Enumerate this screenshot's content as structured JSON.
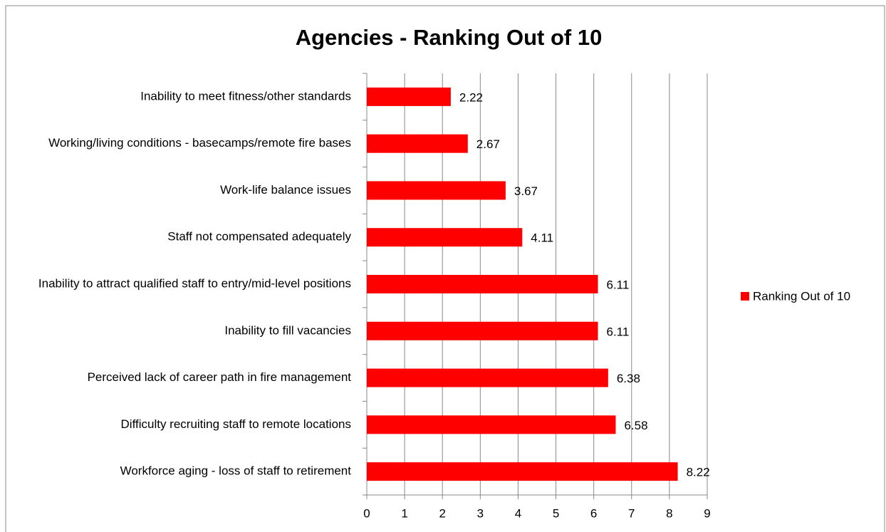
{
  "chart_data": {
    "type": "bar",
    "orientation": "horizontal",
    "title": "Agencies - Ranking Out of 10",
    "categories": [
      "Inability to meet fitness/other standards",
      "Working/living conditions - basecamps/remote fire bases",
      "Work-life balance issues",
      "Staff not compensated adequately",
      "Inability to attract qualified staff to entry/mid-level positions",
      "Inability to fill vacancies",
      "Perceived lack of career path in fire management",
      "Difficulty recruiting staff to remote locations",
      "Workforce aging - loss of staff to retirement"
    ],
    "series": [
      {
        "name": "Ranking Out of 10",
        "color": "#ff0000",
        "values": [
          2.22,
          2.67,
          3.67,
          4.11,
          6.11,
          6.11,
          6.38,
          6.58,
          8.22
        ]
      }
    ],
    "xlim": [
      0,
      9
    ],
    "xticks": [
      0,
      1,
      2,
      3,
      4,
      5,
      6,
      7,
      8,
      9
    ],
    "grid": true,
    "legend": "right",
    "data_labels": true
  }
}
